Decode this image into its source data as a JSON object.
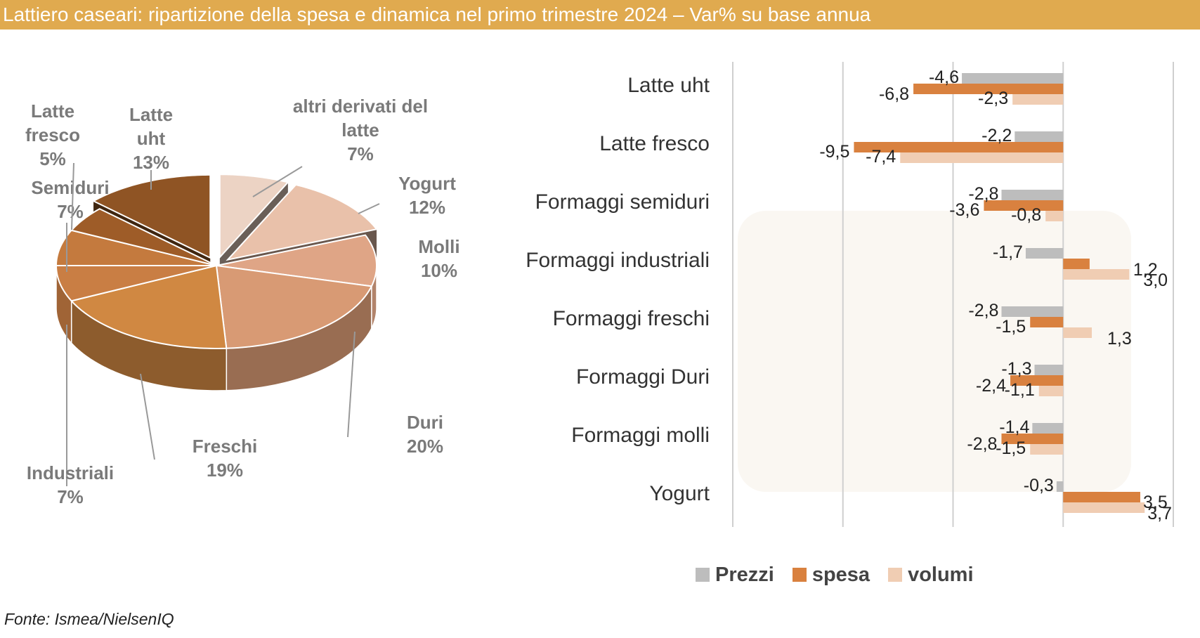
{
  "title": "Lattiero caseari: ripartizione della spesa e dinamica nel primo trimestre 2024 – Var% su base annua",
  "source": "Fonte: Ismea/NielsenIQ",
  "chart_data": [
    {
      "type": "pie",
      "title": "",
      "slices": [
        {
          "label": "altri derivati del latte",
          "display_lines": [
            "altri derivati del",
            "latte",
            "7%"
          ],
          "value": 7,
          "color": "#ecd3c4",
          "exploded": true
        },
        {
          "label": "Yogurt",
          "display_lines": [
            "Yogurt",
            "12%"
          ],
          "value": 12,
          "color": "#e9c1aa",
          "exploded": true
        },
        {
          "label": "Molli",
          "display_lines": [
            "Molli",
            "10%"
          ],
          "value": 10,
          "color": "#dfa586",
          "exploded": false
        },
        {
          "label": "Duri",
          "display_lines": [
            "Duri",
            "20%"
          ],
          "value": 20,
          "color": "#d89a74",
          "exploded": false
        },
        {
          "label": "Freschi",
          "display_lines": [
            "Freschi",
            "19%"
          ],
          "value": 19,
          "color": "#d08842",
          "exploded": false
        },
        {
          "label": "Industriali",
          "display_lines": [
            "Industriali",
            "7%"
          ],
          "value": 7,
          "color": "#c97e44",
          "exploded": false
        },
        {
          "label": "Semiduri",
          "display_lines": [
            "Semiduri",
            "7%"
          ],
          "value": 7,
          "color": "#c47a3e",
          "exploded": false
        },
        {
          "label": "Latte fresco",
          "display_lines": [
            "Latte",
            "fresco",
            "5%"
          ],
          "value": 5,
          "color": "#9e5c28",
          "exploded": false
        },
        {
          "label": "Latte uht",
          "display_lines": [
            "Latte",
            "uht",
            "13%"
          ],
          "value": 13,
          "color": "#8f5424",
          "exploded": true
        }
      ]
    },
    {
      "type": "bar",
      "orientation": "horizontal",
      "title": "",
      "categories": [
        "Latte uht",
        "Latte fresco",
        "Formaggi semiduri",
        "Formaggi industriali",
        "Formaggi freschi",
        "Formaggi Duri",
        "Formaggi molli",
        "Yogurt"
      ],
      "series": [
        {
          "name": "Prezzi",
          "color": "#bdbdbd",
          "values": [
            -4.6,
            -2.2,
            -2.8,
            -1.7,
            -2.8,
            -1.3,
            -1.4,
            -0.3
          ],
          "labels": [
            "-4,6",
            "-2,2",
            "-2,8",
            "-1,7",
            "-2,8",
            "-1,3",
            "-1,4",
            "-0,3"
          ]
        },
        {
          "name": "spesa",
          "color": "#d9813f",
          "values": [
            -6.8,
            -9.5,
            -3.6,
            1.2,
            -1.5,
            -2.4,
            -2.8,
            3.5
          ],
          "labels": [
            "-6,8",
            "-9,5",
            "-3,6",
            "1,2",
            "-1,5",
            "-2,4",
            "-2,8",
            "3,5"
          ]
        },
        {
          "name": "volumi",
          "color": "#f0cdb3",
          "values": [
            -2.3,
            -7.4,
            -0.8,
            3.0,
            1.3,
            -1.1,
            -1.5,
            3.7
          ],
          "labels": [
            "-2,3",
            "-7,4",
            "-0,8",
            "3,0",
            "1,3",
            "-1,1",
            "-1,5",
            "3,7"
          ]
        }
      ],
      "xlim": [
        -15,
        5
      ],
      "gridlines": [
        -15,
        -10,
        -5,
        0,
        5
      ],
      "legend_position": "bottom"
    }
  ]
}
